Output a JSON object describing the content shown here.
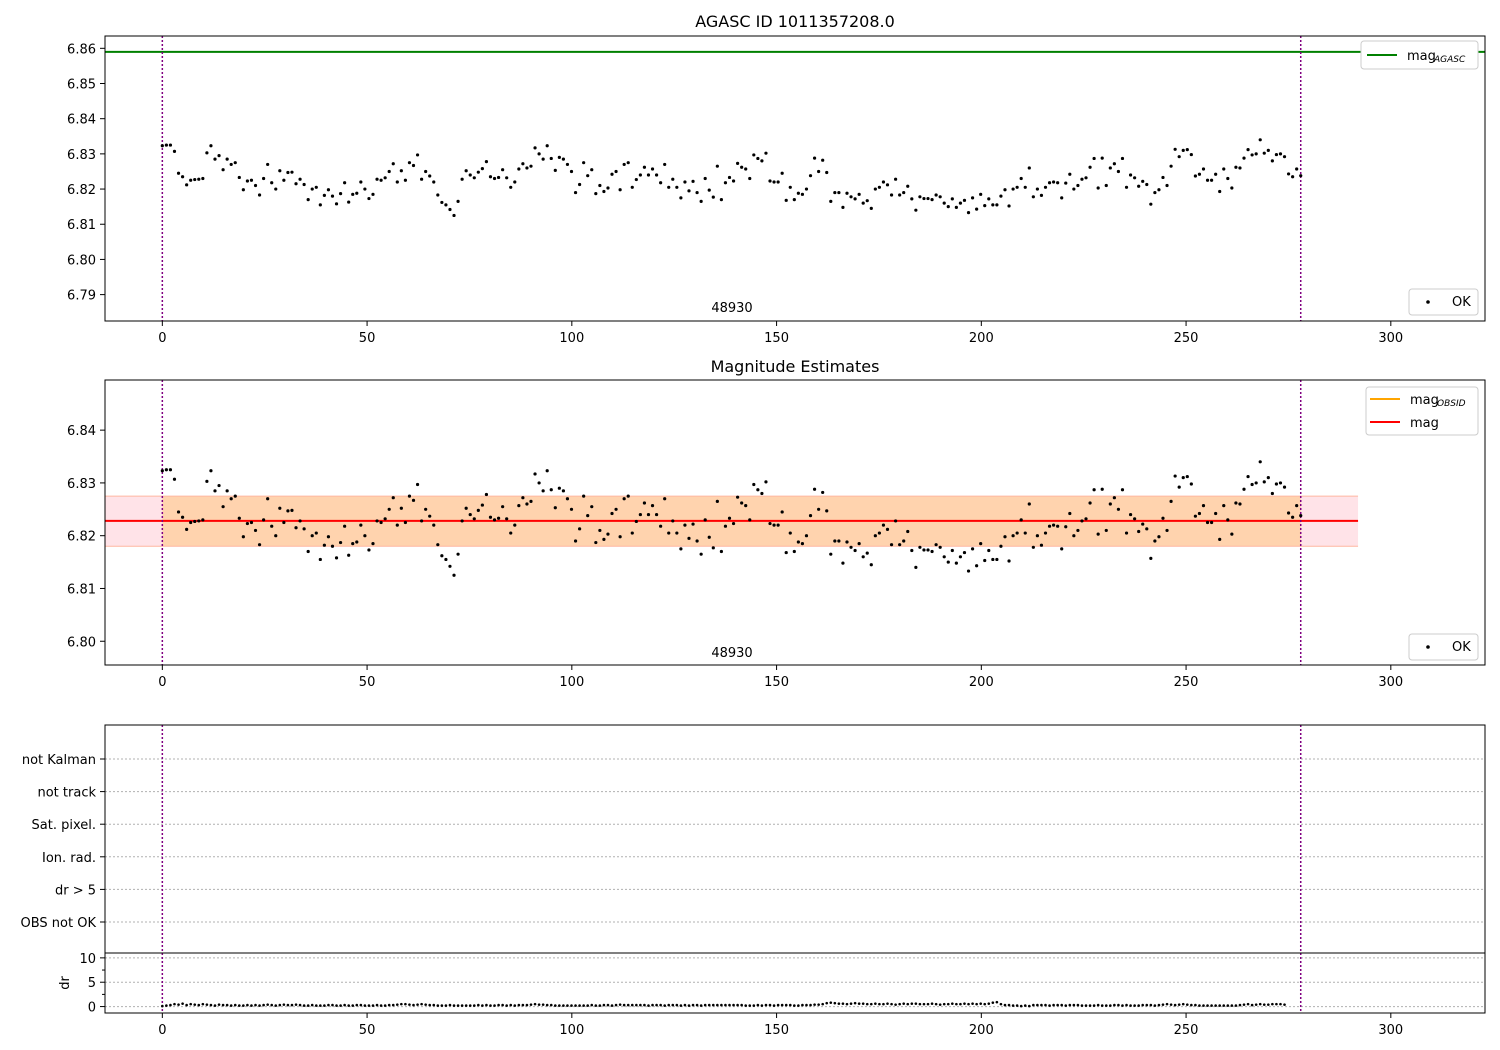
{
  "chart_data": [
    {
      "type": "scatter",
      "title": "AGASC ID 1011357208.0",
      "xlim": [
        -14,
        323
      ],
      "ylim": [
        6.7825,
        6.8635
      ],
      "x_ticks": [
        0,
        50,
        100,
        150,
        200,
        250,
        300
      ],
      "y_ticks": [
        6.79,
        6.8,
        6.81,
        6.82,
        6.83,
        6.84,
        6.85,
        6.86
      ],
      "vlines": [
        0,
        278
      ],
      "hline": {
        "name": "mag_AGASC",
        "value": 6.859,
        "color": "#008000"
      },
      "annotation": {
        "text": "48930",
        "x": 139
      },
      "legend_upper": [
        {
          "name": "mag",
          "subscript": "AGASC",
          "color": "#008000",
          "kind": "line"
        }
      ],
      "legend_lower": [
        {
          "name": "OK",
          "kind": "point"
        }
      ],
      "grid": false
    },
    {
      "type": "scatter",
      "title": "Magnitude Estimates",
      "xlim": [
        -14,
        323
      ],
      "ylim": [
        6.7955,
        6.8495
      ],
      "x_ticks": [
        0,
        50,
        100,
        150,
        200,
        250,
        300
      ],
      "y_ticks": [
        6.8,
        6.81,
        6.82,
        6.83,
        6.84
      ],
      "vlines": [
        0,
        278
      ],
      "band": {
        "low": 6.818,
        "high": 6.8275,
        "x0": -14,
        "x1": 292,
        "x_core0": 0,
        "x_core1": 278
      },
      "mean_line": {
        "value": 6.8228,
        "x0": -14,
        "x1": 292,
        "color": "#ff0000"
      },
      "annotation": {
        "text": "48930",
        "x": 139
      },
      "legend_upper": [
        {
          "name": "mag",
          "subscript": "OBSID",
          "color": "#ffa500",
          "kind": "line"
        },
        {
          "name": "mag",
          "subscript": "",
          "color": "#ff0000",
          "kind": "line"
        }
      ],
      "legend_lower": [
        {
          "name": "OK",
          "kind": "point"
        }
      ],
      "grid": false
    },
    {
      "type": "scatter",
      "title": "",
      "xlim": [
        -14,
        323
      ],
      "vlines": [
        0,
        278
      ],
      "flags": [
        "not Kalman",
        "not track",
        "Sat. pixel.",
        "Ion. rad.",
        "dr > 5",
        "OBS not OK"
      ],
      "dr_axis": {
        "label": "dr",
        "ylim": [
          -0.5,
          11
        ],
        "ticks": [
          0,
          5,
          10
        ]
      },
      "x_ticks": [
        0,
        50,
        100,
        150,
        200,
        250,
        300
      ],
      "grid": "y dotted"
    }
  ],
  "series": {
    "mag_points": [
      6.8323,
      6.8325,
      6.8325,
      6.8307,
      6.8245,
      6.8235,
      6.8212,
      6.8225,
      6.8227,
      6.8228,
      6.823,
      6.8303,
      6.8323,
      6.8285,
      6.8295,
      6.8255,
      6.8285,
      6.827,
      6.8275,
      6.8233,
      6.8198,
      6.8223,
      6.8225,
      6.821,
      6.8183,
      6.823,
      6.827,
      6.8218,
      6.82,
      6.8252,
      6.8225,
      6.8247,
      6.8248,
      6.8215,
      6.8228,
      6.8213,
      6.817,
      6.82,
      6.8205,
      6.8155,
      6.8182,
      6.8198,
      6.818,
      6.8158,
      6.8187,
      6.8218,
      6.8163,
      6.8185,
      6.8188,
      6.822,
      6.82,
      6.8173,
      6.8185,
      6.8228,
      6.8225,
      6.8232,
      6.825,
      6.8272,
      6.822,
      6.8252,
      6.8225,
      6.8275,
      6.8267,
      6.8297,
      6.8228,
      6.825,
      6.8237,
      6.822,
      6.8183,
      6.8162,
      6.8155,
      6.8142,
      6.8125,
      6.8165,
      6.8228,
      6.8252,
      6.824,
      6.8232,
      6.8248,
      6.8258,
      6.8278,
      6.8235,
      6.823,
      6.8233,
      6.8255,
      6.8232,
      6.8205,
      6.822,
      6.8257,
      6.8272,
      6.826,
      6.8265,
      6.8317,
      6.83,
      6.8285,
      6.8323,
      6.8287,
      6.8253,
      6.829,
      6.8285,
      6.827,
      6.825,
      6.819,
      6.8213,
      6.8275,
      6.8238,
      6.8255,
      6.8187,
      6.821,
      6.8193,
      6.8203,
      6.8242,
      6.825,
      6.8198,
      6.827,
      6.8275,
      6.8205,
      6.8227,
      6.824,
      6.8262,
      6.824,
      6.8257,
      6.824,
      6.8218,
      6.827,
      6.8205,
      6.8228,
      6.8205,
      6.8175,
      6.822,
      6.8195,
      6.8222,
      6.819,
      6.8165,
      6.823,
      6.8197,
      6.8177,
      6.8265,
      6.817,
      6.8218,
      6.8233,
      6.8223,
      6.8273,
      6.8262,
      6.8257,
      6.823,
      6.8297,
      6.8287,
      6.828,
      6.8302,
      6.8223,
      6.822,
      6.822,
      6.8245,
      6.8168,
      6.8205,
      6.817,
      6.8188,
      6.8185,
      6.82,
      6.8238,
      6.8288,
      6.825,
      6.8282,
      6.8247,
      6.8165,
      6.819,
      6.819,
      6.8148,
      6.8188,
      6.8178,
      6.8172,
      6.8185,
      6.816,
      6.8167,
      6.8145,
      6.82,
      6.8205,
      6.822,
      6.8212,
      6.8183,
      6.8228,
      6.8183,
      6.819,
      6.8208,
      6.8172,
      6.814,
      6.8178,
      6.8173,
      6.8173,
      6.817,
      6.8183,
      6.8178,
      6.816,
      6.815,
      6.8172,
      6.8148,
      6.816,
      6.8168,
      6.8133,
      6.8175,
      6.8143,
      6.8185,
      6.8153,
      6.8172,
      6.8155,
      6.8155,
      6.818,
      6.8198,
      6.8152,
      6.82,
      6.8205,
      6.823,
      6.8205,
      6.826,
      6.8178,
      6.82,
      6.8182,
      6.8205,
      6.8218,
      6.822,
      6.8218,
      6.8175,
      6.8217,
      6.8242,
      6.82,
      6.821,
      6.8228,
      6.8232,
      6.8262,
      6.8287,
      6.8203,
      6.8288,
      6.821,
      6.826,
      6.8272,
      6.825,
      6.8287,
      6.8205,
      6.824,
      6.8232,
      6.8208,
      6.8222,
      6.8213,
      6.8157,
      6.819,
      6.8198,
      6.8233,
      6.821,
      6.8265,
      6.8313,
      6.8292,
      6.831,
      6.8312,
      6.8298,
      6.8237,
      6.8242,
      6.8257,
      6.8225,
      6.8225,
      6.8242,
      6.8193,
      6.8257,
      6.823,
      6.8203,
      6.8262,
      6.826,
      6.8288,
      6.8312,
      6.8297,
      6.83,
      6.834,
      6.8302,
      6.831,
      6.828,
      6.8298,
      6.83,
      6.8292,
      6.8243,
      6.8235,
      6.8257,
      6.8238
    ],
    "dr_points": [
      0.1,
      0.2,
      0.3,
      0.5,
      0.4,
      0.6,
      0.3,
      0.5,
      0.4,
      0.3,
      0.5,
      0.4,
      0.3,
      0.2,
      0.4,
      0.3,
      0.3,
      0.2,
      0.3,
      0.2,
      0.2,
      0.3,
      0.2,
      0.3,
      0.2,
      0.3,
      0.4,
      0.3,
      0.2,
      0.3,
      0.4,
      0.3,
      0.3,
      0.4,
      0.3,
      0.2,
      0.2,
      0.3,
      0.2,
      0.2,
      0.2,
      0.3,
      0.3,
      0.2,
      0.2,
      0.3,
      0.2,
      0.2,
      0.3,
      0.3,
      0.2,
      0.2,
      0.2,
      0.3,
      0.2,
      0.2,
      0.3,
      0.3,
      0.4,
      0.5,
      0.5,
      0.4,
      0.3,
      0.4,
      0.5,
      0.4,
      0.3,
      0.3,
      0.2,
      0.2,
      0.2,
      0.3,
      0.2,
      0.2,
      0.2,
      0.2,
      0.2,
      0.2,
      0.3,
      0.2,
      0.3,
      0.2,
      0.2,
      0.3,
      0.3,
      0.2,
      0.3,
      0.2,
      0.3,
      0.3,
      0.3,
      0.4,
      0.5,
      0.4,
      0.4,
      0.3,
      0.3,
      0.2,
      0.2,
      0.2,
      0.2,
      0.2,
      0.2,
      0.2,
      0.2,
      0.2,
      0.3,
      0.2,
      0.2,
      0.3,
      0.3,
      0.2,
      0.3,
      0.4,
      0.3,
      0.3,
      0.3,
      0.3,
      0.3,
      0.3,
      0.2,
      0.3,
      0.3,
      0.3,
      0.2,
      0.3,
      0.3,
      0.3,
      0.2,
      0.3,
      0.2,
      0.3,
      0.3,
      0.2,
      0.3,
      0.3,
      0.3,
      0.3,
      0.3,
      0.3,
      0.3,
      0.3,
      0.3,
      0.3,
      0.2,
      0.2,
      0.2,
      0.3,
      0.2,
      0.3,
      0.3,
      0.2,
      0.3,
      0.3,
      0.3,
      0.3,
      0.2,
      0.2,
      0.3,
      0.3,
      0.3,
      0.4,
      0.4,
      0.5,
      0.7,
      0.8,
      0.7,
      0.6,
      0.6,
      0.5,
      0.6,
      0.7,
      0.6,
      0.6,
      0.5,
      0.5,
      0.6,
      0.5,
      0.5,
      0.6,
      0.5,
      0.4,
      0.5,
      0.6,
      0.5,
      0.6,
      0.6,
      0.5,
      0.5,
      0.5,
      0.6,
      0.5,
      0.4,
      0.5,
      0.5,
      0.6,
      0.5,
      0.5,
      0.6,
      0.5,
      0.6,
      0.5,
      0.6,
      0.5,
      0.6,
      0.8,
      0.9,
      0.5,
      0.3,
      0.3,
      0.2,
      0.2,
      0.1,
      0.2,
      0.1,
      0.3,
      0.3,
      0.3,
      0.3,
      0.2,
      0.3,
      0.3,
      0.3,
      0.2,
      0.3,
      0.3,
      0.3,
      0.2,
      0.2,
      0.2,
      0.2,
      0.3,
      0.2,
      0.2,
      0.2,
      0.3,
      0.3,
      0.2,
      0.3,
      0.2,
      0.2,
      0.2,
      0.3,
      0.3,
      0.3,
      0.2,
      0.3,
      0.4,
      0.5,
      0.4,
      0.3,
      0.4,
      0.5,
      0.4,
      0.3,
      0.3,
      0.2,
      0.2,
      0.2,
      0.2,
      0.2,
      0.2,
      0.2,
      0.2,
      0.2,
      0.2,
      0.3,
      0.4,
      0.5,
      0.3,
      0.4,
      0.5,
      0.4,
      0.4,
      0.5,
      0.5,
      0.5,
      0.4
    ]
  }
}
